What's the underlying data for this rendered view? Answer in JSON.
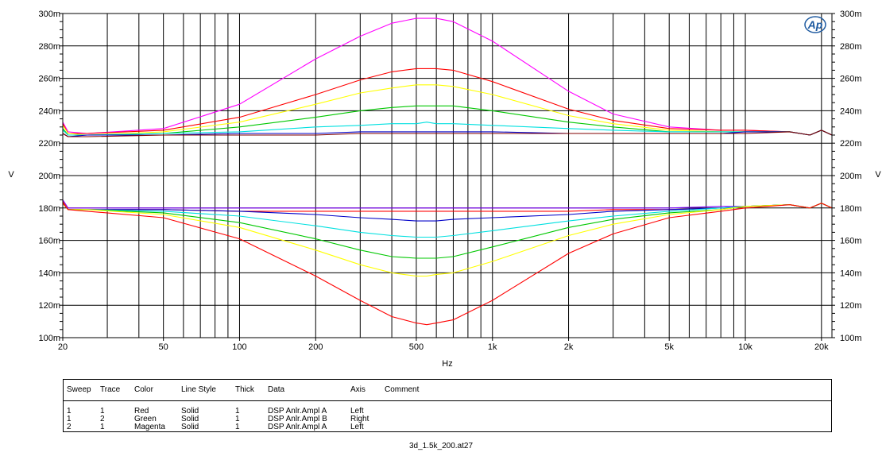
{
  "chart_data": {
    "type": "line",
    "x_scale": "log",
    "xlim": [
      20,
      22000
    ],
    "ylim": [
      0.1,
      0.3
    ],
    "xlabel": "Hz",
    "ylabel_left": "V",
    "ylabel_right": "V",
    "grid": true,
    "x_ticks": [
      {
        "value": 20,
        "label": "20"
      },
      {
        "value": 50,
        "label": "50"
      },
      {
        "value": 100,
        "label": "100"
      },
      {
        "value": 200,
        "label": "200"
      },
      {
        "value": 500,
        "label": "500"
      },
      {
        "value": 1000,
        "label": "1k"
      },
      {
        "value": 2000,
        "label": "2k"
      },
      {
        "value": 5000,
        "label": "5k"
      },
      {
        "value": 10000,
        "label": "10k"
      },
      {
        "value": 20000,
        "label": "20k"
      }
    ],
    "x_grid": [
      20,
      30,
      40,
      50,
      60,
      70,
      80,
      90,
      100,
      200,
      300,
      400,
      500,
      600,
      700,
      800,
      900,
      1000,
      2000,
      3000,
      4000,
      5000,
      6000,
      7000,
      8000,
      9000,
      10000,
      20000
    ],
    "y_ticks": [
      {
        "value": 0.1,
        "label": "100m"
      },
      {
        "value": 0.12,
        "label": "120m"
      },
      {
        "value": 0.14,
        "label": "140m"
      },
      {
        "value": 0.16,
        "label": "160m"
      },
      {
        "value": 0.18,
        "label": "180m"
      },
      {
        "value": 0.2,
        "label": "200m"
      },
      {
        "value": 0.22,
        "label": "220m"
      },
      {
        "value": 0.24,
        "label": "240m"
      },
      {
        "value": 0.26,
        "label": "260m"
      },
      {
        "value": 0.28,
        "label": "280m"
      },
      {
        "value": 0.3,
        "label": "300m"
      }
    ],
    "series": [
      {
        "color": "#ff00ff",
        "x": [
          20,
          21,
          25,
          50,
          100,
          200,
          300,
          400,
          500,
          550,
          600,
          700,
          1000,
          2000,
          3000,
          5000,
          8000,
          10000,
          15000,
          18000,
          20000,
          22000
        ],
        "values": [
          0.233,
          0.227,
          0.226,
          0.229,
          0.244,
          0.272,
          0.286,
          0.294,
          0.297,
          0.297,
          0.297,
          0.295,
          0.283,
          0.252,
          0.238,
          0.23,
          0.228,
          0.228,
          0.227,
          0.225,
          0.228,
          0.225
        ]
      },
      {
        "color": "#ff0000",
        "x": [
          20,
          21,
          25,
          50,
          100,
          200,
          300,
          400,
          500,
          550,
          600,
          700,
          1000,
          2000,
          3000,
          5000,
          8000,
          10000,
          15000,
          18000,
          20000,
          22000
        ],
        "values": [
          0.232,
          0.226,
          0.226,
          0.228,
          0.236,
          0.25,
          0.259,
          0.264,
          0.266,
          0.266,
          0.266,
          0.265,
          0.258,
          0.241,
          0.234,
          0.229,
          0.228,
          0.228,
          0.227,
          0.225,
          0.228,
          0.225
        ]
      },
      {
        "color": "#ffff00",
        "x": [
          20,
          21,
          25,
          50,
          100,
          200,
          300,
          400,
          500,
          550,
          600,
          700,
          1000,
          2000,
          3000,
          5000,
          8000,
          10000,
          15000,
          18000,
          20000,
          22000
        ],
        "values": [
          0.231,
          0.226,
          0.225,
          0.227,
          0.233,
          0.244,
          0.251,
          0.254,
          0.256,
          0.256,
          0.256,
          0.255,
          0.25,
          0.237,
          0.232,
          0.228,
          0.227,
          0.227,
          0.227,
          0.225,
          0.228,
          0.225
        ]
      },
      {
        "color": "#00c800",
        "x": [
          20,
          21,
          25,
          50,
          100,
          200,
          300,
          400,
          500,
          550,
          600,
          700,
          1000,
          2000,
          3000,
          5000,
          8000,
          10000,
          15000,
          18000,
          20000,
          22000
        ],
        "values": [
          0.229,
          0.225,
          0.225,
          0.226,
          0.23,
          0.236,
          0.24,
          0.242,
          0.243,
          0.243,
          0.243,
          0.243,
          0.24,
          0.233,
          0.23,
          0.227,
          0.227,
          0.227,
          0.227,
          0.225,
          0.228,
          0.225
        ]
      },
      {
        "color": "#00e0e0",
        "x": [
          20,
          21,
          25,
          50,
          100,
          200,
          300,
          400,
          500,
          550,
          600,
          700,
          1000,
          2000,
          3000,
          5000,
          8000,
          10000,
          15000,
          18000,
          20000,
          22000
        ],
        "values": [
          0.228,
          0.225,
          0.225,
          0.226,
          0.227,
          0.23,
          0.231,
          0.232,
          0.232,
          0.233,
          0.232,
          0.232,
          0.231,
          0.229,
          0.228,
          0.227,
          0.227,
          0.227,
          0.227,
          0.225,
          0.228,
          0.225
        ]
      },
      {
        "color": "#0000c8",
        "x": [
          20,
          21,
          25,
          50,
          100,
          200,
          300,
          400,
          500,
          550,
          600,
          700,
          1000,
          2000,
          3000,
          5000,
          8000,
          10000,
          15000,
          18000,
          20000,
          22000
        ],
        "values": [
          0.226,
          0.224,
          0.225,
          0.225,
          0.226,
          0.226,
          0.227,
          0.227,
          0.227,
          0.227,
          0.227,
          0.227,
          0.227,
          0.226,
          0.226,
          0.226,
          0.226,
          0.227,
          0.227,
          0.225,
          0.228,
          0.225
        ]
      },
      {
        "color": "#800000",
        "x": [
          20,
          21,
          25,
          50,
          100,
          200,
          300,
          400,
          500,
          550,
          600,
          700,
          1000,
          2000,
          3000,
          5000,
          8000,
          10000,
          15000,
          18000,
          20000,
          22000
        ],
        "values": [
          0.226,
          0.224,
          0.224,
          0.225,
          0.225,
          0.225,
          0.226,
          0.226,
          0.226,
          0.226,
          0.226,
          0.226,
          0.226,
          0.226,
          0.226,
          0.226,
          0.226,
          0.226,
          0.227,
          0.225,
          0.228,
          0.225
        ]
      },
      {
        "color": "#8000ff",
        "x": [
          20,
          21,
          25,
          50,
          100,
          200,
          300,
          400,
          500,
          550,
          600,
          700,
          1000,
          2000,
          3000,
          5000,
          8000,
          10000,
          15000,
          18000,
          20000,
          22000
        ],
        "values": [
          0.185,
          0.18,
          0.18,
          0.18,
          0.18,
          0.18,
          0.18,
          0.18,
          0.18,
          0.18,
          0.18,
          0.18,
          0.18,
          0.18,
          0.18,
          0.18,
          0.181,
          0.181,
          0.182,
          0.18,
          0.183,
          0.18
        ]
      },
      {
        "color": "#ff0000",
        "x": [
          20,
          21,
          25,
          50,
          100,
          200,
          300,
          400,
          500,
          550,
          600,
          700,
          1000,
          2000,
          3000,
          5000,
          8000,
          10000,
          15000,
          18000,
          20000,
          22000
        ],
        "values": [
          0.184,
          0.179,
          0.179,
          0.179,
          0.178,
          0.178,
          0.178,
          0.178,
          0.178,
          0.178,
          0.178,
          0.178,
          0.178,
          0.178,
          0.179,
          0.179,
          0.18,
          0.181,
          0.182,
          0.18,
          0.183,
          0.18
        ]
      },
      {
        "color": "#0000c8",
        "x": [
          20,
          21,
          25,
          50,
          100,
          200,
          300,
          400,
          500,
          550,
          600,
          700,
          1000,
          2000,
          3000,
          5000,
          8000,
          10000,
          15000,
          18000,
          20000,
          22000
        ],
        "values": [
          0.183,
          0.179,
          0.179,
          0.179,
          0.178,
          0.176,
          0.174,
          0.173,
          0.172,
          0.172,
          0.172,
          0.173,
          0.174,
          0.176,
          0.178,
          0.179,
          0.18,
          0.181,
          0.182,
          0.18,
          0.183,
          0.18
        ]
      },
      {
        "color": "#00e0e0",
        "x": [
          20,
          21,
          25,
          50,
          100,
          200,
          300,
          400,
          500,
          550,
          600,
          700,
          1000,
          2000,
          3000,
          5000,
          8000,
          10000,
          15000,
          18000,
          20000,
          22000
        ],
        "values": [
          0.183,
          0.179,
          0.179,
          0.178,
          0.175,
          0.169,
          0.165,
          0.163,
          0.162,
          0.162,
          0.162,
          0.163,
          0.166,
          0.172,
          0.175,
          0.178,
          0.18,
          0.181,
          0.182,
          0.18,
          0.183,
          0.18
        ]
      },
      {
        "color": "#00c800",
        "x": [
          20,
          21,
          25,
          50,
          100,
          200,
          300,
          400,
          500,
          550,
          600,
          700,
          1000,
          2000,
          3000,
          5000,
          8000,
          10000,
          15000,
          18000,
          20000,
          22000
        ],
        "values": [
          0.183,
          0.179,
          0.179,
          0.177,
          0.171,
          0.161,
          0.154,
          0.15,
          0.149,
          0.149,
          0.149,
          0.15,
          0.156,
          0.168,
          0.173,
          0.177,
          0.179,
          0.181,
          0.182,
          0.18,
          0.183,
          0.18
        ]
      },
      {
        "color": "#ffff00",
        "x": [
          20,
          21,
          25,
          50,
          100,
          200,
          300,
          400,
          500,
          550,
          600,
          700,
          1000,
          2000,
          3000,
          5000,
          8000,
          10000,
          15000,
          18000,
          20000,
          22000
        ],
        "values": [
          0.183,
          0.179,
          0.179,
          0.176,
          0.168,
          0.154,
          0.145,
          0.14,
          0.138,
          0.138,
          0.139,
          0.14,
          0.147,
          0.163,
          0.17,
          0.176,
          0.179,
          0.181,
          0.182,
          0.18,
          0.183,
          0.18
        ]
      },
      {
        "color": "#ff0000",
        "x": [
          20,
          21,
          25,
          50,
          100,
          200,
          300,
          400,
          500,
          550,
          600,
          700,
          1000,
          2000,
          3000,
          5000,
          8000,
          10000,
          15000,
          18000,
          20000,
          22000
        ],
        "values": [
          0.183,
          0.179,
          0.178,
          0.174,
          0.161,
          0.138,
          0.123,
          0.113,
          0.109,
          0.108,
          0.109,
          0.111,
          0.123,
          0.152,
          0.164,
          0.174,
          0.178,
          0.18,
          0.182,
          0.18,
          0.183,
          0.18
        ]
      }
    ]
  },
  "legend": {
    "headers": [
      "Sweep",
      "Trace",
      "Color",
      "Line Style",
      "Thick",
      "Data",
      "Axis",
      "Comment"
    ],
    "rows": [
      [
        "1",
        "1",
        "Red",
        "Solid",
        "1",
        "DSP Anlr.Ampl A",
        "Left",
        ""
      ],
      [
        "1",
        "2",
        "Green",
        "Solid",
        "1",
        "DSP Anlr.Ampl B",
        "Right",
        ""
      ],
      [
        "2",
        "1",
        "Magenta",
        "Solid",
        "1",
        "DSP Anlr.Ampl A",
        "Left",
        ""
      ]
    ]
  },
  "logo": {
    "text": "Ap",
    "color": "#1e5aa0",
    "icon": "ap-logo-icon"
  },
  "filename": "3d_1.5k_200.at27"
}
